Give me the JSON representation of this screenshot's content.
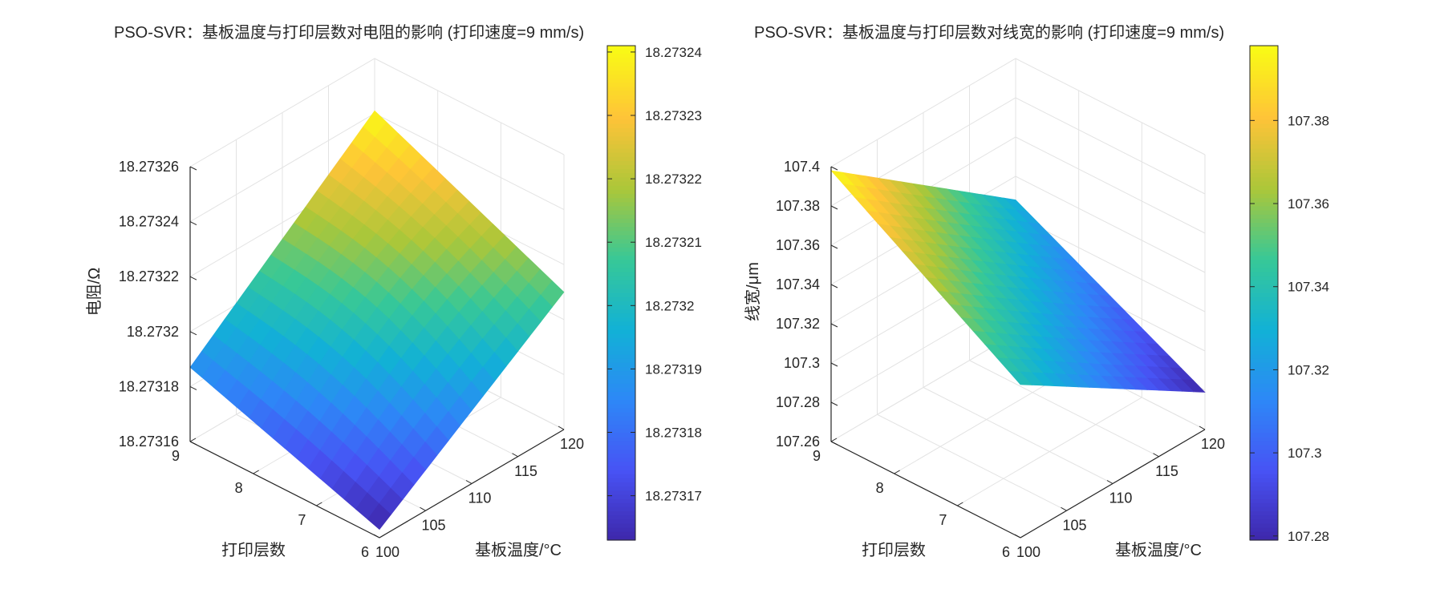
{
  "chart_data": [
    {
      "type": "surface",
      "title": "PSO-SVR：基板温度与打印层数对电阻的影响 (打印速度=9 mm/s)",
      "xlabel": "基板温度/°C",
      "ylabel": "打印层数",
      "zlabel": "电阻/Ω",
      "x_ticks": [
        "100",
        "105",
        "110",
        "115",
        "120"
      ],
      "y_ticks": [
        "6",
        "7",
        "8",
        "9"
      ],
      "z_ticks": [
        "18.27316",
        "18.27318",
        "18.2732",
        "18.27322",
        "18.27324",
        "18.27326"
      ],
      "x_range": [
        100,
        120
      ],
      "y_range": [
        6,
        9
      ],
      "z_range": [
        18.27316,
        18.27326
      ],
      "corner_values": {
        "x100_y6": 18.273163,
        "x120_y6": 18.27321,
        "x100_y9": 18.273187,
        "x120_y9": 18.273241
      },
      "colorbar": {
        "range": [
          18.273163,
          18.273241
        ],
        "ticks": [
          "18.27317",
          "18.27318",
          "18.27319",
          "18.2732",
          "18.27321",
          "18.27322",
          "18.27323",
          "18.27324"
        ]
      },
      "colormap": "parula",
      "grid": true
    },
    {
      "type": "surface",
      "title": "PSO-SVR：基板温度与打印层数对线宽的影响 (打印速度=9 mm/s)",
      "xlabel": "基板温度/°C",
      "ylabel": "打印层数",
      "zlabel": "线宽/μm",
      "x_ticks": [
        "100",
        "105",
        "110",
        "115",
        "120"
      ],
      "y_ticks": [
        "6",
        "7",
        "8",
        "9"
      ],
      "z_ticks": [
        "107.26",
        "107.28",
        "107.3",
        "107.32",
        "107.34",
        "107.36",
        "107.38",
        "107.4"
      ],
      "x_range": [
        100,
        120
      ],
      "y_range": [
        6,
        9
      ],
      "z_range": [
        107.26,
        107.4
      ],
      "corner_values": {
        "x100_y6": 107.338,
        "x120_y6": 107.279,
        "x100_y9": 107.398,
        "x120_y9": 107.328
      },
      "colorbar": {
        "range": [
          107.279,
          107.398
        ],
        "ticks": [
          "107.28",
          "107.3",
          "107.32",
          "107.34",
          "107.36",
          "107.38"
        ]
      },
      "colormap": "parula",
      "grid": true
    }
  ]
}
